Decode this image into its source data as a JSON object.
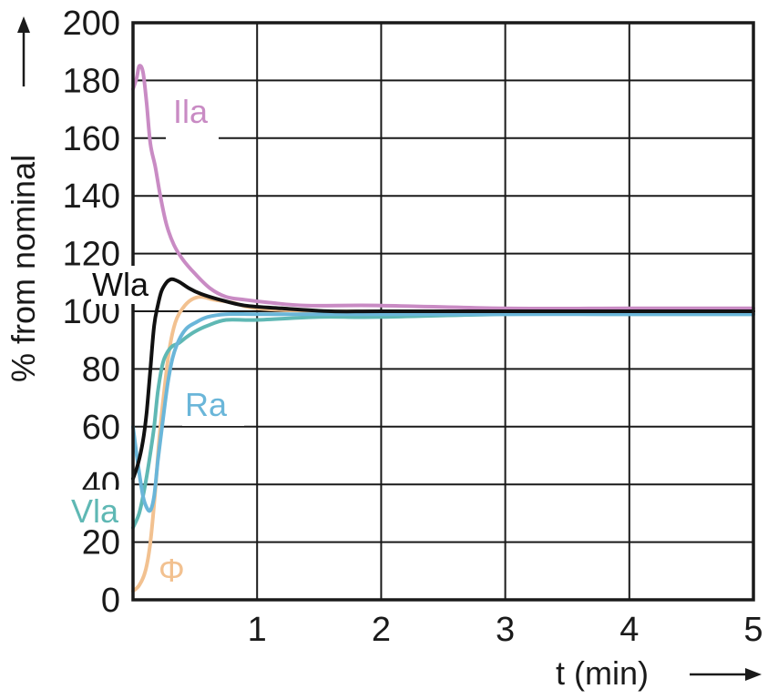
{
  "chart_data": {
    "type": "line",
    "title": "",
    "xlabel": "t (min)",
    "ylabel": "% from nominal",
    "xlim": [
      0,
      5
    ],
    "ylim": [
      0,
      200
    ],
    "x_ticks": [
      "1",
      "2",
      "3",
      "4",
      "5"
    ],
    "y_ticks": [
      "0",
      "20",
      "40",
      "60",
      "80",
      "100",
      "120",
      "140",
      "160",
      "180",
      "200"
    ],
    "grid": true,
    "series": [
      {
        "name": "Ila",
        "color": "#c98bc4",
        "x": [
          0,
          0.03,
          0.05,
          0.08,
          0.11,
          0.14,
          0.18,
          0.22,
          0.27,
          0.33,
          0.4,
          0.5,
          0.62,
          0.75,
          0.9,
          1.1,
          1.4,
          2,
          3,
          4,
          5
        ],
        "y": [
          177,
          181,
          185,
          183,
          172,
          158,
          150,
          140,
          130,
          123,
          118,
          113,
          108,
          105,
          104,
          103,
          102,
          102,
          101,
          101,
          101
        ]
      },
      {
        "name": "Wla",
        "color": "#111111",
        "x": [
          0,
          0.04,
          0.08,
          0.11,
          0.14,
          0.17,
          0.2,
          0.23,
          0.27,
          0.3,
          0.33,
          0.38,
          0.45,
          0.55,
          0.7,
          0.9,
          1.2,
          1.6,
          2,
          3,
          4,
          5
        ],
        "y": [
          42,
          47,
          55,
          65,
          80,
          95,
          102,
          107,
          110,
          111,
          111,
          110,
          108,
          106,
          104,
          102,
          101,
          100,
          100,
          100,
          100,
          100
        ]
      },
      {
        "name": "Ra",
        "color": "#6ab6d9",
        "x": [
          0,
          0.04,
          0.08,
          0.11,
          0.14,
          0.17,
          0.2,
          0.24,
          0.28,
          0.32,
          0.37,
          0.43,
          0.5,
          0.6,
          0.75,
          1,
          1.5,
          2,
          3,
          4,
          5
        ],
        "y": [
          60,
          47,
          36,
          32,
          31,
          36,
          48,
          62,
          75,
          84,
          90,
          94,
          96,
          98,
          99,
          99,
          99,
          99,
          99,
          99,
          99
        ]
      },
      {
        "name": "Vla",
        "color": "#5fb8b4",
        "x": [
          0,
          0.05,
          0.09,
          0.13,
          0.17,
          0.2,
          0.24,
          0.28,
          0.32,
          0.37,
          0.43,
          0.5,
          0.6,
          0.75,
          1,
          1.5,
          2,
          3,
          4,
          5
        ],
        "y": [
          25,
          30,
          38,
          48,
          60,
          72,
          82,
          86,
          88,
          89,
          91,
          93,
          95,
          97,
          97,
          98,
          98,
          99,
          99,
          99
        ]
      },
      {
        "name": "Φ",
        "color": "#f2c190",
        "x": [
          0,
          0.05,
          0.1,
          0.14,
          0.18,
          0.21,
          0.25,
          0.29,
          0.34,
          0.4,
          0.47,
          0.55,
          0.65,
          0.8,
          1,
          1.5,
          2,
          3,
          4,
          5
        ],
        "y": [
          3,
          5,
          10,
          20,
          38,
          55,
          72,
          86,
          96,
          101,
          104,
          105,
          104,
          103,
          101,
          100,
          100,
          100,
          100,
          100
        ]
      }
    ],
    "legend": "inline labels next to curves"
  },
  "arrows": {
    "y_axis": "up-arrow-icon",
    "x_axis": "right-arrow-icon"
  }
}
